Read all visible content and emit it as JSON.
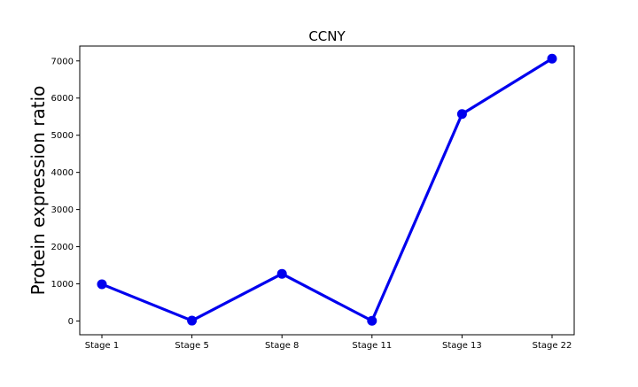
{
  "chart_data": {
    "type": "line",
    "title": "CCNY",
    "xlabel": "",
    "ylabel": "Protein expression ratio",
    "categories": [
      "Stage 1",
      "Stage 5",
      "Stage 8",
      "Stage 11",
      "Stage 13",
      "Stage 22"
    ],
    "series": [
      {
        "values": [
          990,
          10,
          1270,
          5,
          5570,
          7060
        ],
        "color": "#0000ee",
        "marker": "circle"
      }
    ],
    "yticks": [
      0,
      1000,
      2000,
      3000,
      4000,
      5000,
      6000,
      7000
    ],
    "ylim": [
      -370,
      7400
    ],
    "grid": false
  }
}
